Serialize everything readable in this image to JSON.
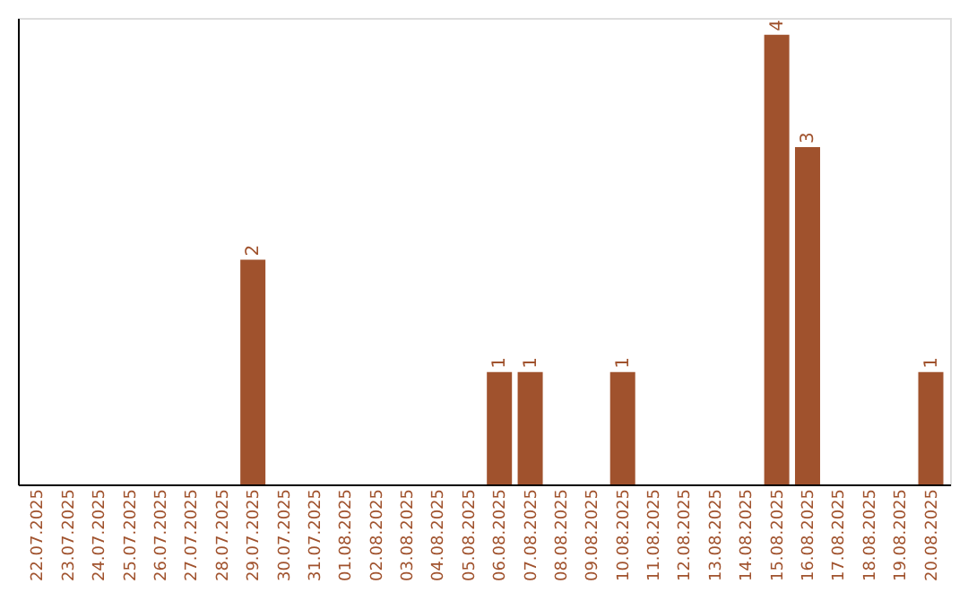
{
  "chart_data": {
    "type": "bar",
    "categories": [
      "22.07.2025",
      "23.07.2025",
      "24.07.2025",
      "25.07.2025",
      "26.07.2025",
      "27.07.2025",
      "28.07.2025",
      "29.07.2025",
      "30.07.2025",
      "31.07.2025",
      "01.08.2025",
      "02.08.2025",
      "03.08.2025",
      "04.08.2025",
      "05.08.2025",
      "06.08.2025",
      "07.08.2025",
      "08.08.2025",
      "09.08.2025",
      "10.08.2025",
      "11.08.2025",
      "12.08.2025",
      "13.08.2025",
      "14.08.2025",
      "15.08.2025",
      "16.08.2025",
      "17.08.2025",
      "18.08.2025",
      "19.08.2025",
      "20.08.2025"
    ],
    "values": [
      0,
      0,
      0,
      0,
      0,
      0,
      0,
      2,
      0,
      0,
      0,
      0,
      0,
      0,
      0,
      1,
      1,
      0,
      0,
      1,
      0,
      0,
      0,
      0,
      4,
      3,
      0,
      0,
      0,
      1
    ],
    "value_labels": [
      null,
      null,
      null,
      null,
      null,
      null,
      null,
      "2",
      null,
      null,
      null,
      null,
      null,
      null,
      null,
      "1",
      "1",
      null,
      null,
      "1",
      null,
      null,
      null,
      null,
      "4",
      "3",
      null,
      null,
      null,
      "1"
    ],
    "color": "#a0522d",
    "ylim": [
      0,
      4.15
    ],
    "tick_labels": "x",
    "grid": false
  }
}
